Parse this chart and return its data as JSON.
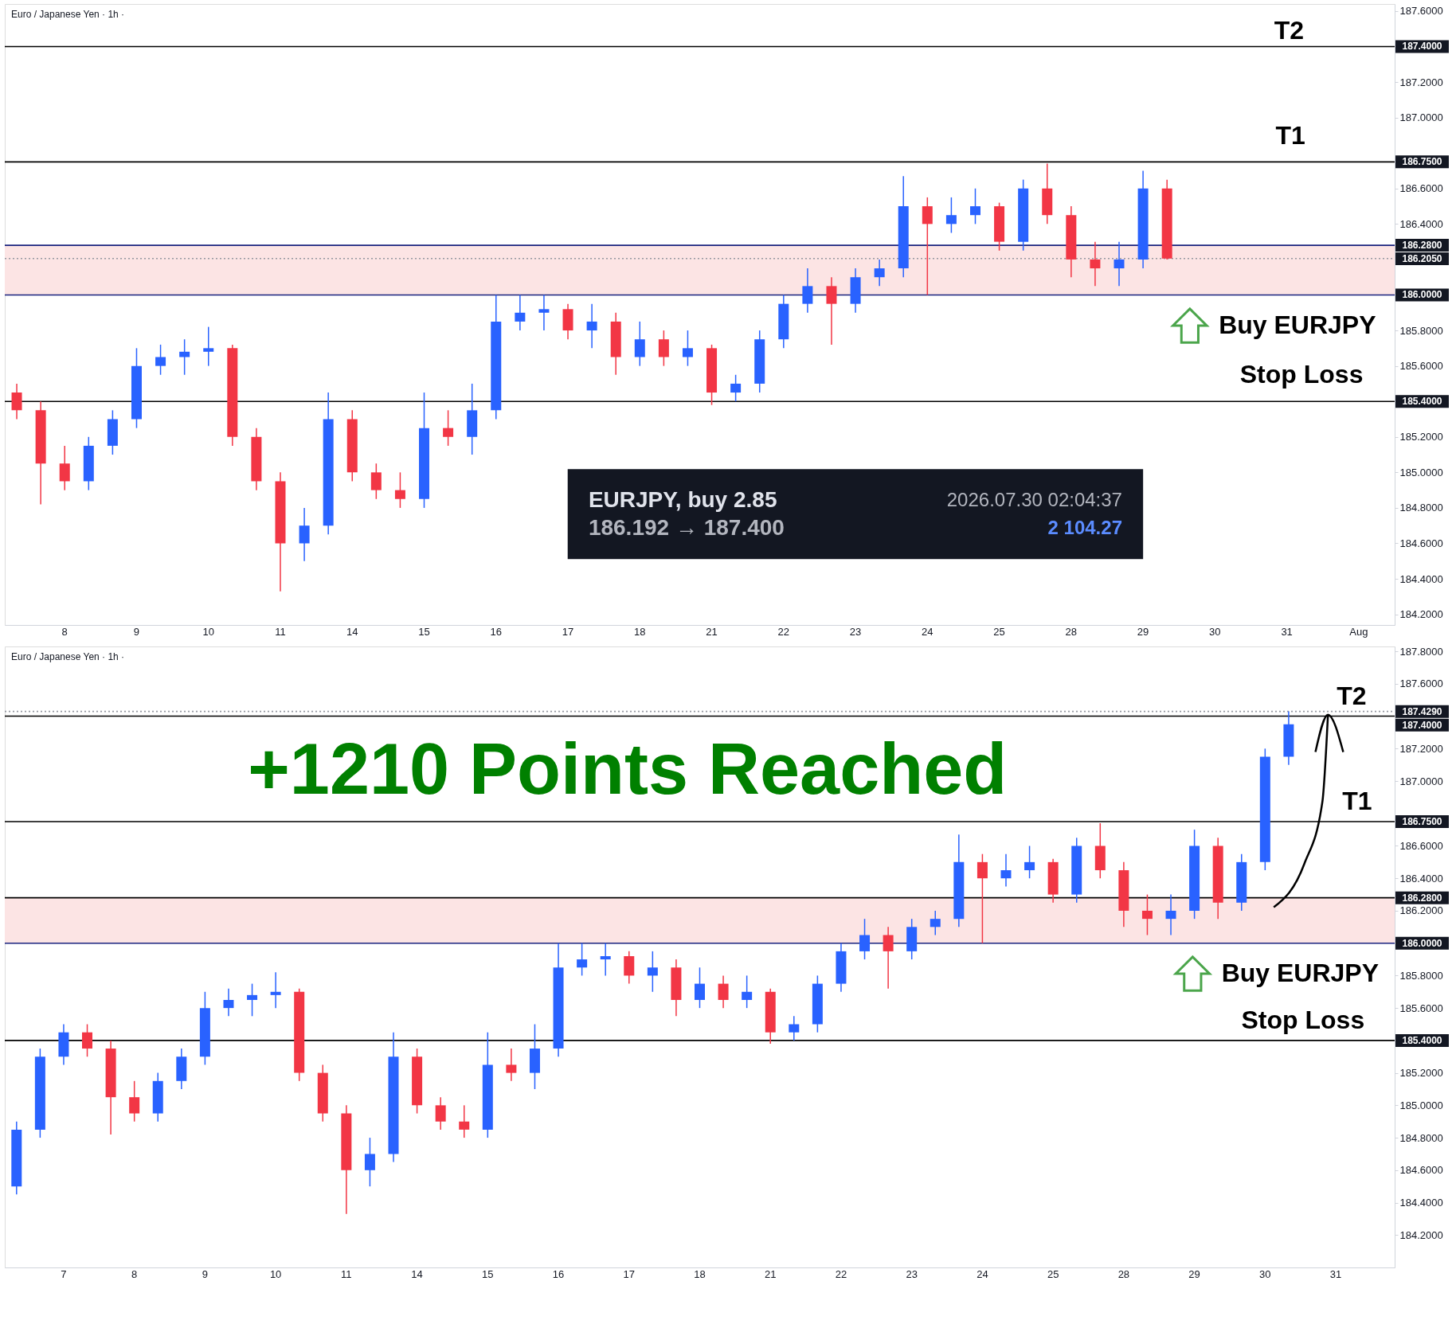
{
  "chart_data": [
    {
      "type": "candlestick",
      "title": "Euro / Japanese Yen · 1h ·",
      "categories": [
        null,
        null,
        "8",
        null,
        null,
        "9",
        null,
        null,
        "10",
        null,
        null,
        "11",
        null,
        null,
        "14",
        null,
        null,
        "15",
        null,
        null,
        "16",
        null,
        null,
        "17",
        null,
        null,
        "18",
        null,
        null,
        "21",
        null,
        null,
        "22",
        null,
        null,
        "23",
        null,
        null,
        "24",
        null,
        null,
        "25",
        null,
        null,
        "28",
        null,
        null,
        "29",
        null,
        null,
        "30",
        null,
        null,
        "31",
        null,
        null,
        "Aug",
        null
      ],
      "ohlc": [
        [
          185.45,
          185.5,
          185.3,
          185.35
        ],
        [
          185.35,
          185.4,
          184.82,
          185.05
        ],
        [
          185.05,
          185.15,
          184.9,
          184.95
        ],
        [
          184.95,
          185.2,
          184.9,
          185.15
        ],
        [
          185.15,
          185.35,
          185.1,
          185.3
        ],
        [
          185.3,
          185.7,
          185.25,
          185.6
        ],
        [
          185.6,
          185.72,
          185.55,
          185.65
        ],
        [
          185.65,
          185.75,
          185.55,
          185.68
        ],
        [
          185.68,
          185.82,
          185.6,
          185.7
        ],
        [
          185.7,
          185.72,
          185.15,
          185.2
        ],
        [
          185.2,
          185.25,
          184.9,
          184.95
        ],
        [
          184.95,
          185.0,
          184.33,
          184.6
        ],
        [
          184.6,
          184.8,
          184.5,
          184.7
        ],
        [
          184.7,
          185.45,
          184.65,
          185.3
        ],
        [
          185.3,
          185.35,
          184.95,
          185.0
        ],
        [
          185.0,
          185.05,
          184.85,
          184.9
        ],
        [
          184.9,
          185.0,
          184.8,
          184.85
        ],
        [
          184.85,
          185.45,
          184.8,
          185.25
        ],
        [
          185.25,
          185.35,
          185.15,
          185.2
        ],
        [
          185.2,
          185.5,
          185.1,
          185.35
        ],
        [
          185.35,
          186.0,
          185.3,
          185.85
        ],
        [
          185.85,
          186.0,
          185.8,
          185.9
        ],
        [
          185.9,
          186.0,
          185.8,
          185.92
        ],
        [
          185.92,
          185.95,
          185.75,
          185.8
        ],
        [
          185.8,
          185.95,
          185.7,
          185.85
        ],
        [
          185.85,
          185.9,
          185.55,
          185.65
        ],
        [
          185.65,
          185.85,
          185.6,
          185.75
        ],
        [
          185.75,
          185.8,
          185.6,
          185.65
        ],
        [
          185.65,
          185.8,
          185.6,
          185.7
        ],
        [
          185.7,
          185.72,
          185.38,
          185.45
        ],
        [
          185.45,
          185.55,
          185.4,
          185.5
        ],
        [
          185.5,
          185.8,
          185.45,
          185.75
        ],
        [
          185.75,
          186.0,
          185.7,
          185.95
        ],
        [
          185.95,
          186.15,
          185.9,
          186.05
        ],
        [
          186.05,
          186.1,
          185.72,
          185.95
        ],
        [
          185.95,
          186.15,
          185.9,
          186.1
        ],
        [
          186.1,
          186.2,
          186.05,
          186.15
        ],
        [
          186.15,
          186.67,
          186.1,
          186.5
        ],
        [
          186.5,
          186.55,
          186.0,
          186.4
        ],
        [
          186.4,
          186.55,
          186.35,
          186.45
        ],
        [
          186.45,
          186.6,
          186.4,
          186.5
        ],
        [
          186.5,
          186.52,
          186.25,
          186.3
        ],
        [
          186.3,
          186.65,
          186.25,
          186.6
        ],
        [
          186.6,
          186.74,
          186.4,
          186.45
        ],
        [
          186.45,
          186.5,
          186.1,
          186.2
        ],
        [
          186.2,
          186.3,
          186.05,
          186.15
        ],
        [
          186.15,
          186.3,
          186.05,
          186.2
        ],
        [
          186.2,
          186.7,
          186.15,
          186.6
        ],
        [
          186.6,
          186.65,
          186.2,
          186.205
        ],
        null,
        null,
        null,
        null,
        null,
        null,
        null,
        null,
        null
      ],
      "colors": [
        "#f23645",
        "#f23645",
        "#f23645",
        "#2962ff",
        "#2962ff",
        "#2962ff",
        "#2962ff",
        "#2962ff",
        "#2962ff",
        "#f23645",
        "#f23645",
        "#f23645",
        "#2962ff",
        "#2962ff",
        "#f23645",
        "#f23645",
        "#f23645",
        "#2962ff",
        "#f23645",
        "#2962ff",
        "#2962ff",
        "#2962ff",
        "#2962ff",
        "#f23645",
        "#2962ff",
        "#f23645",
        "#2962ff",
        "#f23645",
        "#2962ff",
        "#f23645",
        "#2962ff",
        "#2962ff",
        "#2962ff",
        "#2962ff",
        "#f23645",
        "#2962ff",
        "#2962ff",
        "#2962ff",
        "#f23645",
        "#2962ff",
        "#2962ff",
        "#f23645",
        "#2962ff",
        "#f23645",
        "#f23645",
        "#f23645",
        "#2962ff",
        "#2962ff",
        "#f23645",
        null,
        null,
        null,
        null,
        null,
        null,
        null,
        null,
        null
      ],
      "ylim": [
        184.14,
        187.64
      ],
      "yticks": [
        {
          "value": 184.2,
          "label": "184.2000"
        },
        {
          "value": 184.4,
          "label": "184.4000"
        },
        {
          "value": 184.6,
          "label": "184.6000"
        },
        {
          "value": 184.8,
          "label": "184.8000"
        },
        {
          "value": 185.0,
          "label": "185.0000"
        },
        {
          "value": 185.2,
          "label": "185.2000"
        },
        {
          "value": 185.6,
          "label": "185.6000"
        },
        {
          "value": 185.8,
          "label": "185.8000"
        },
        {
          "value": 186.4,
          "label": "186.4000"
        },
        {
          "value": 186.6,
          "label": "186.6000"
        },
        {
          "value": 187.0,
          "label": "187.0000"
        },
        {
          "value": 187.2,
          "label": "187.2000"
        },
        {
          "value": 187.6,
          "label": "187.6000"
        }
      ],
      "bands": [
        {
          "axis": "y",
          "from": 186.0,
          "to": 186.28,
          "color": "#fce4e4"
        }
      ],
      "ref_lines": [
        {
          "axis": "y",
          "value": 187.4,
          "label": "187.4000",
          "color": "#000000"
        },
        {
          "axis": "y",
          "value": 186.75,
          "label": "186.7500",
          "color": "#000000"
        },
        {
          "axis": "y",
          "value": 186.28,
          "label": "186.2800",
          "color": "#1a237e"
        },
        {
          "axis": "y",
          "value": 186.205,
          "label": "186.2050",
          "color": "#9598a1",
          "line_style": "dotted"
        },
        {
          "axis": "y",
          "value": 186.0,
          "label": "186.0000",
          "color": "#1a237e"
        },
        {
          "axis": "y",
          "value": 185.4,
          "label": "185.4000",
          "color": "#000000"
        }
      ],
      "annotations": [
        "T2",
        "T1",
        "Buy EURJPY",
        "Stop Loss",
        "EURJPY, buy 2.85",
        "186.192 → 187.400",
        "2026.07.30 02:04:37",
        "2 104.27"
      ]
    },
    {
      "type": "candlestick",
      "title": "Euro / Japanese Yen · 1h ·",
      "categories": [
        null,
        null,
        "7",
        null,
        null,
        "8",
        null,
        null,
        "9",
        null,
        null,
        "10",
        null,
        null,
        "11",
        null,
        null,
        "14",
        null,
        null,
        "15",
        null,
        null,
        "16",
        null,
        null,
        "17",
        null,
        null,
        "18",
        null,
        null,
        "21",
        null,
        null,
        "22",
        null,
        null,
        "23",
        null,
        null,
        "24",
        null,
        null,
        "25",
        null,
        null,
        "28",
        null,
        null,
        "29",
        null,
        null,
        "30",
        null,
        null,
        "31",
        null,
        null
      ],
      "ohlc": [
        [
          184.5,
          184.9,
          184.45,
          184.85
        ],
        [
          184.85,
          185.35,
          184.8,
          185.3
        ],
        [
          185.3,
          185.5,
          185.25,
          185.45
        ],
        [
          185.45,
          185.5,
          185.3,
          185.35
        ],
        [
          185.35,
          185.4,
          184.82,
          185.05
        ],
        [
          185.05,
          185.15,
          184.9,
          184.95
        ],
        [
          184.95,
          185.2,
          184.9,
          185.15
        ],
        [
          185.15,
          185.35,
          185.1,
          185.3
        ],
        [
          185.3,
          185.7,
          185.25,
          185.6
        ],
        [
          185.6,
          185.72,
          185.55,
          185.65
        ],
        [
          185.65,
          185.75,
          185.55,
          185.68
        ],
        [
          185.68,
          185.82,
          185.6,
          185.7
        ],
        [
          185.7,
          185.72,
          185.15,
          185.2
        ],
        [
          185.2,
          185.25,
          184.9,
          184.95
        ],
        [
          184.95,
          185.0,
          184.33,
          184.6
        ],
        [
          184.6,
          184.8,
          184.5,
          184.7
        ],
        [
          184.7,
          185.45,
          184.65,
          185.3
        ],
        [
          185.3,
          185.35,
          184.95,
          185.0
        ],
        [
          185.0,
          185.05,
          184.85,
          184.9
        ],
        [
          184.9,
          185.0,
          184.8,
          184.85
        ],
        [
          184.85,
          185.45,
          184.8,
          185.25
        ],
        [
          185.25,
          185.35,
          185.15,
          185.2
        ],
        [
          185.2,
          185.5,
          185.1,
          185.35
        ],
        [
          185.35,
          186.0,
          185.3,
          185.85
        ],
        [
          185.85,
          186.0,
          185.8,
          185.9
        ],
        [
          185.9,
          186.0,
          185.8,
          185.92
        ],
        [
          185.92,
          185.95,
          185.75,
          185.8
        ],
        [
          185.8,
          185.95,
          185.7,
          185.85
        ],
        [
          185.85,
          185.9,
          185.55,
          185.65
        ],
        [
          185.65,
          185.85,
          185.6,
          185.75
        ],
        [
          185.75,
          185.8,
          185.6,
          185.65
        ],
        [
          185.65,
          185.8,
          185.6,
          185.7
        ],
        [
          185.7,
          185.72,
          185.38,
          185.45
        ],
        [
          185.45,
          185.55,
          185.4,
          185.5
        ],
        [
          185.5,
          185.8,
          185.45,
          185.75
        ],
        [
          185.75,
          186.0,
          185.7,
          185.95
        ],
        [
          185.95,
          186.15,
          185.9,
          186.05
        ],
        [
          186.05,
          186.1,
          185.72,
          185.95
        ],
        [
          185.95,
          186.15,
          185.9,
          186.1
        ],
        [
          186.1,
          186.2,
          186.05,
          186.15
        ],
        [
          186.15,
          186.67,
          186.1,
          186.5
        ],
        [
          186.5,
          186.55,
          186.0,
          186.4
        ],
        [
          186.4,
          186.55,
          186.35,
          186.45
        ],
        [
          186.45,
          186.6,
          186.4,
          186.5
        ],
        [
          186.5,
          186.52,
          186.25,
          186.3
        ],
        [
          186.3,
          186.65,
          186.25,
          186.6
        ],
        [
          186.6,
          186.74,
          186.4,
          186.45
        ],
        [
          186.45,
          186.5,
          186.1,
          186.2
        ],
        [
          186.2,
          186.3,
          186.05,
          186.15
        ],
        [
          186.15,
          186.3,
          186.05,
          186.2
        ],
        [
          186.2,
          186.7,
          186.15,
          186.6
        ],
        [
          186.6,
          186.65,
          186.15,
          186.25
        ],
        [
          186.25,
          186.55,
          186.2,
          186.5
        ],
        [
          186.5,
          187.2,
          186.45,
          187.15
        ],
        [
          187.15,
          187.43,
          187.1,
          187.35
        ],
        null,
        null,
        null,
        null
      ],
      "colors": [
        "#2962ff",
        "#2962ff",
        "#2962ff",
        "#f23645",
        "#f23645",
        "#f23645",
        "#2962ff",
        "#2962ff",
        "#2962ff",
        "#2962ff",
        "#2962ff",
        "#2962ff",
        "#f23645",
        "#f23645",
        "#f23645",
        "#2962ff",
        "#2962ff",
        "#f23645",
        "#f23645",
        "#f23645",
        "#2962ff",
        "#f23645",
        "#2962ff",
        "#2962ff",
        "#2962ff",
        "#2962ff",
        "#f23645",
        "#2962ff",
        "#f23645",
        "#2962ff",
        "#f23645",
        "#2962ff",
        "#f23645",
        "#2962ff",
        "#2962ff",
        "#2962ff",
        "#2962ff",
        "#f23645",
        "#2962ff",
        "#2962ff",
        "#2962ff",
        "#f23645",
        "#2962ff",
        "#2962ff",
        "#f23645",
        "#2962ff",
        "#f23645",
        "#f23645",
        "#f23645",
        "#2962ff",
        "#2962ff",
        "#f23645",
        "#2962ff",
        "#2962ff",
        "#2962ff",
        null,
        null,
        null,
        null
      ],
      "ylim": [
        184.0,
        187.83
      ],
      "yticks": [
        {
          "value": 184.2,
          "label": "184.2000"
        },
        {
          "value": 184.4,
          "label": "184.4000"
        },
        {
          "value": 184.6,
          "label": "184.6000"
        },
        {
          "value": 184.8,
          "label": "184.8000"
        },
        {
          "value": 185.0,
          "label": "185.0000"
        },
        {
          "value": 185.2,
          "label": "185.2000"
        },
        {
          "value": 185.6,
          "label": "185.6000"
        },
        {
          "value": 185.8,
          "label": "185.8000"
        },
        {
          "value": 186.2,
          "label": "186.2000"
        },
        {
          "value": 186.4,
          "label": "186.4000"
        },
        {
          "value": 186.6,
          "label": "186.6000"
        },
        {
          "value": 187.0,
          "label": "187.0000"
        },
        {
          "value": 187.2,
          "label": "187.2000"
        },
        {
          "value": 187.6,
          "label": "187.6000"
        },
        {
          "value": 187.8,
          "label": "187.8000"
        }
      ],
      "bands": [
        {
          "axis": "y",
          "from": 186.0,
          "to": 186.28,
          "color": "#fce4e4"
        }
      ],
      "ref_lines": [
        {
          "axis": "y",
          "value": 187.429,
          "label": "187.4290",
          "color": "#9598a1",
          "line_style": "dotted"
        },
        {
          "axis": "y",
          "value": 187.4,
          "label": "187.4000",
          "color": "#000000"
        },
        {
          "axis": "y",
          "value": 186.75,
          "label": "186.7500",
          "color": "#000000"
        },
        {
          "axis": "y",
          "value": 186.28,
          "label": "186.2800",
          "color": "#000000"
        },
        {
          "axis": "y",
          "value": 186.0,
          "label": "186.0000",
          "color": "#1a237e"
        },
        {
          "axis": "y",
          "value": 185.4,
          "label": "185.4000",
          "color": "#000000"
        }
      ],
      "annotations": [
        "+1210 Points Reached",
        {
          "text": "T2",
          "y": 187.4
        },
        {
          "text": "T1",
          "y": 186.75
        },
        "Buy EURJPY",
        "Stop Loss"
      ]
    }
  ]
}
